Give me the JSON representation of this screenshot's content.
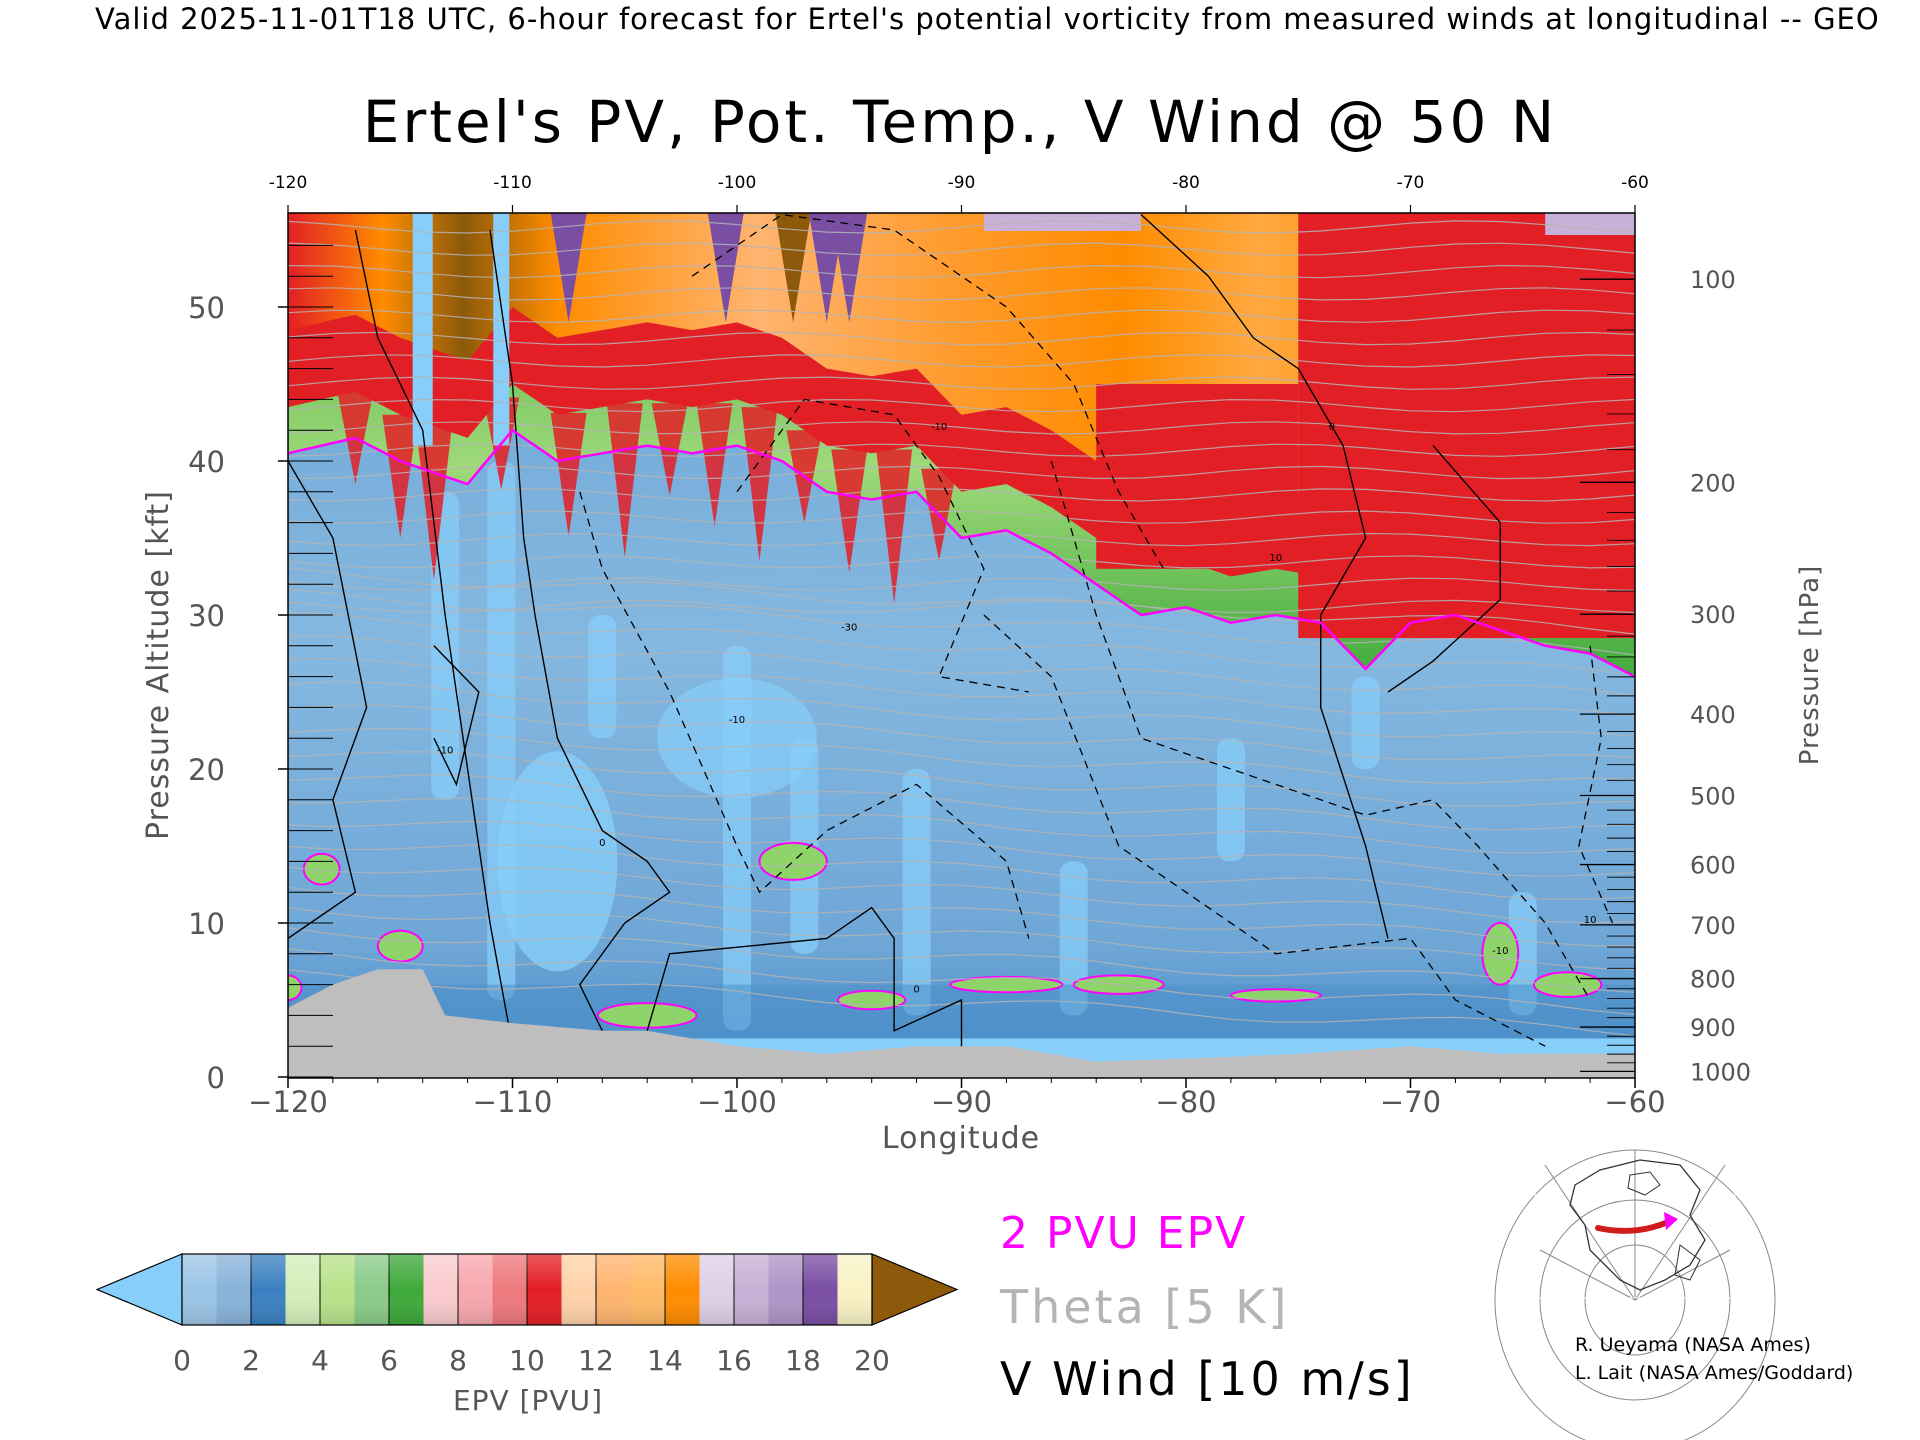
{
  "header": {
    "valid_line": "Valid 2025-11-01T18 UTC, 6-hour forecast for Ertel's potential vorticity from measured winds at longitudinal -- GEO",
    "title": "Ertel's PV, Pot. Temp., V Wind @ 50 N"
  },
  "colorbar": {
    "label": "EPV [PVU]",
    "ticks": [
      "0",
      "2",
      "4",
      "6",
      "8",
      "10",
      "12",
      "14",
      "16",
      "18",
      "20"
    ]
  },
  "legend": {
    "pv_contour": "2 PVU EPV",
    "theta": "Theta [5 K]",
    "vwind": "V Wind [10 m/s]",
    "pv_color": "#ff00ff",
    "theta_color": "#b4b4b4"
  },
  "credits": {
    "line1": "R. Ueyama (NASA Ames)",
    "line2": "L. Lait (NASA Ames/Goddard)"
  },
  "colors": {
    "terrain": "#bebebe",
    "light_blue": "#87cefa",
    "mid_blue": "#6fa8d6",
    "dark_blue": "#3a7fc0",
    "green": "#41ab3c",
    "red": "#e31f26",
    "orange": "#ff8c00",
    "purple": "#7a4ea3"
  },
  "chart_data": {
    "type": "heatmap",
    "title": "Ertel's PV, Pot. Temp., V Wind @ 50 N",
    "xlabel": "Longitude",
    "ylabel": "Pressure Altitude [kft]",
    "y2label": "Pressure [hPa]",
    "xlim": [
      -120,
      -60
    ],
    "ylim": [
      0,
      55.5
    ],
    "x_ticks": [
      -120,
      -110,
      -100,
      -90,
      -80,
      -70,
      -60
    ],
    "x_tick_labels": [
      "−120",
      "−110",
      "−100",
      "−90",
      "−80",
      "−70",
      "−60"
    ],
    "top_tick_labels": [
      "-120",
      "-110",
      "-100",
      "-90",
      "-80",
      "-70",
      "-60"
    ],
    "y_ticks": [
      0,
      10,
      20,
      30,
      40,
      50
    ],
    "pressure_ticks": [
      {
        "hpa": 100,
        "label": "100"
      },
      {
        "hpa": 200,
        "label": "200"
      },
      {
        "hpa": 300,
        "label": "300"
      },
      {
        "hpa": 400,
        "label": "400"
      },
      {
        "hpa": 500,
        "label": "500"
      },
      {
        "hpa": 600,
        "label": "600"
      },
      {
        "hpa": 700,
        "label": "700"
      },
      {
        "hpa": 800,
        "label": "800"
      },
      {
        "hpa": 900,
        "label": "900"
      },
      {
        "hpa": 1000,
        "label": "1000"
      }
    ],
    "tropopause_2pvu_kft": [
      [
        -120,
        40.5
      ],
      [
        -117,
        41.5
      ],
      [
        -115,
        40
      ],
      [
        -112,
        38.5
      ],
      [
        -110,
        42
      ],
      [
        -108,
        40
      ],
      [
        -106,
        40.5
      ],
      [
        -104,
        41
      ],
      [
        -102,
        40.5
      ],
      [
        -100,
        41
      ],
      [
        -98,
        40
      ],
      [
        -96,
        38
      ],
      [
        -94,
        37.5
      ],
      [
        -92,
        38
      ],
      [
        -90,
        35
      ],
      [
        -88,
        35.5
      ],
      [
        -86,
        34
      ],
      [
        -84,
        32
      ],
      [
        -82,
        30
      ],
      [
        -80,
        30.5
      ],
      [
        -78,
        29.5
      ],
      [
        -76,
        30
      ],
      [
        -74,
        29.5
      ],
      [
        -72,
        26.5
      ],
      [
        -70,
        29.5
      ],
      [
        -68,
        30
      ],
      [
        -66,
        29
      ],
      [
        -64,
        28
      ],
      [
        -62,
        27.5
      ],
      [
        -60,
        26
      ]
    ],
    "surface_kft": [
      [
        -120,
        4.5
      ],
      [
        -118,
        6
      ],
      [
        -116,
        7
      ],
      [
        -114,
        7
      ],
      [
        -113,
        4
      ],
      [
        -110,
        3.5
      ],
      [
        -106,
        3
      ],
      [
        -104,
        3
      ],
      [
        -100,
        2
      ],
      [
        -96,
        1.5
      ],
      [
        -92,
        2
      ],
      [
        -88,
        2
      ],
      [
        -84,
        1
      ],
      [
        -80,
        1.2
      ],
      [
        -75,
        1.5
      ],
      [
        -70,
        2
      ],
      [
        -66,
        1.5
      ],
      [
        -62,
        1.5
      ],
      [
        -60,
        1.5
      ]
    ],
    "theta_levels_K": [
      300,
      310,
      320,
      330,
      340,
      350,
      360,
      370,
      380,
      390,
      400
    ],
    "vwind_contour_labels": [
      "-30",
      "-10",
      "0",
      "10"
    ],
    "colorbar_bounds_pvu": [
      0,
      2,
      4,
      6,
      8,
      10,
      12,
      14,
      16,
      18,
      20
    ],
    "colorbar_colors": [
      "#9cc5e6",
      "#3a80c1",
      "#b8e28a",
      "#3ea93a",
      "#f7a8ae",
      "#e31f26",
      "#ffb470",
      "#ff8c00",
      "#c8b0d6",
      "#7a4ea3",
      "#f5e99c",
      "#8c5a0a"
    ]
  }
}
